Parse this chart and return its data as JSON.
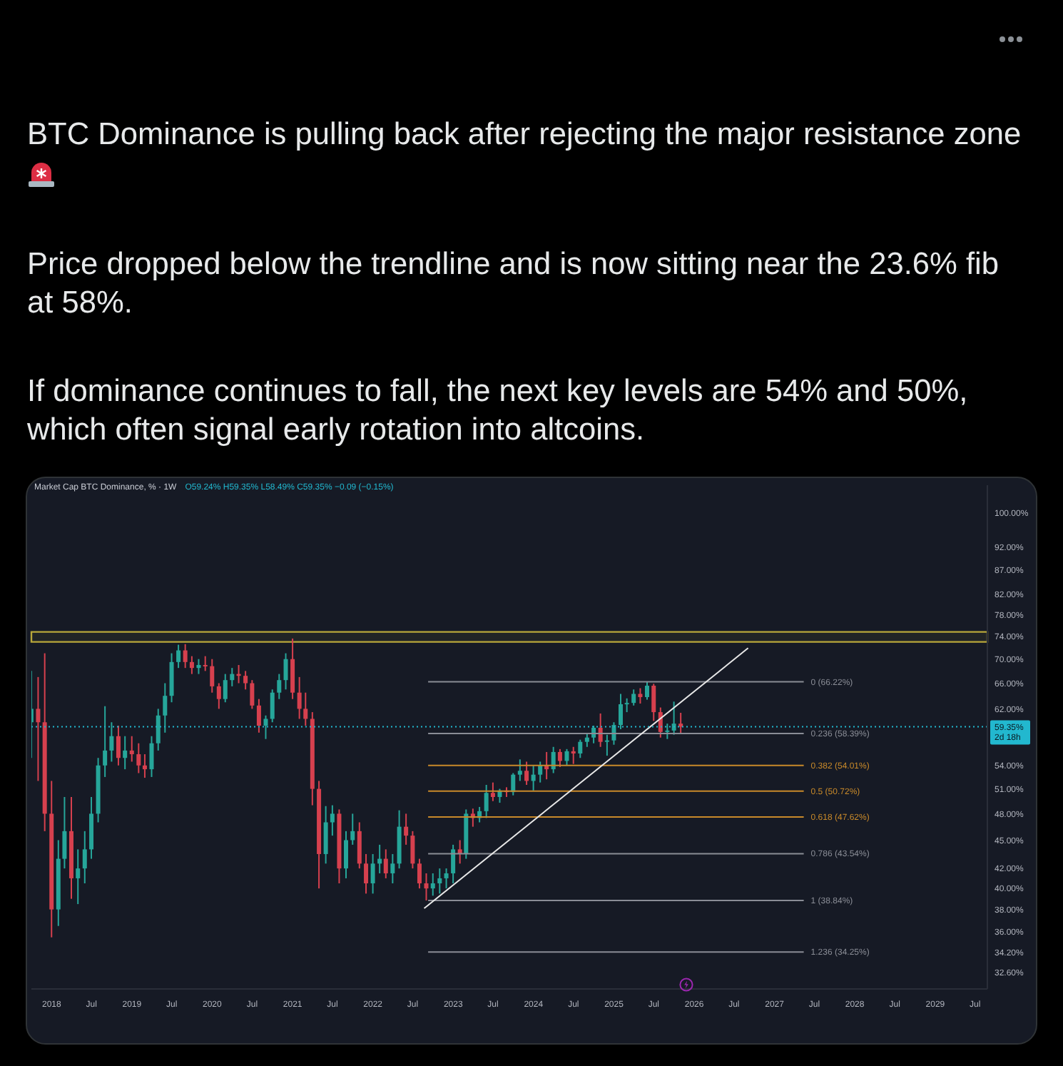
{
  "chart_data": {
    "type": "candlestick",
    "title": "Market Cap BTC Dominance, % · 1W",
    "subtitle": "O59.24% H59.35% L58.49% C59.35% −0.09 (−0.15%)",
    "annotations": [
      "BTC Dominance is pulling back after rejecting the major resistance zone",
      "Price dropped below the trendline and is now sitting near the 23.6% fib at 58%.",
      "If dominance continues to fall, the next key levels are 54% and 50%,\nwhich often signal early rotation into altcoins."
    ],
    "x": [
      "2017-10",
      "2017-11",
      "2017-12",
      "2018-01",
      "2018-02",
      "2018-03",
      "2018-04",
      "2018-05",
      "2018-06",
      "2018-07",
      "2018-08",
      "2018-09",
      "2018-10",
      "2018-11",
      "2018-12",
      "2019-01",
      "2019-02",
      "2019-03",
      "2019-04",
      "2019-05",
      "2019-06",
      "2019-07",
      "2019-08",
      "2019-09",
      "2019-10",
      "2019-11",
      "2019-12",
      "2020-01",
      "2020-02",
      "2020-03",
      "2020-04",
      "2020-05",
      "2020-06",
      "2020-07",
      "2020-08",
      "2020-09",
      "2020-10",
      "2020-11",
      "2020-12",
      "2021-01",
      "2021-02",
      "2021-03",
      "2021-04",
      "2021-05",
      "2021-06",
      "2021-07",
      "2021-08",
      "2021-09",
      "2021-10",
      "2021-11",
      "2021-12",
      "2022-01",
      "2022-02",
      "2022-03",
      "2022-04",
      "2022-05",
      "2022-06",
      "2022-07",
      "2022-08",
      "2022-09",
      "2022-10",
      "2022-11",
      "2022-12",
      "2023-01",
      "2023-02",
      "2023-03",
      "2023-04",
      "2023-05",
      "2023-06",
      "2023-07",
      "2023-08",
      "2023-09",
      "2023-10",
      "2023-11",
      "2023-12",
      "2024-01",
      "2024-02",
      "2024-03",
      "2024-04",
      "2024-05",
      "2024-06",
      "2024-07",
      "2024-08",
      "2024-09",
      "2024-10",
      "2024-11",
      "2024-12",
      "2025-01",
      "2025-02",
      "2025-03",
      "2025-04",
      "2025-05",
      "2025-06",
      "2025-07",
      "2025-08",
      "2025-09",
      "2025-10",
      "2025-11"
    ],
    "ohlc": [
      [
        60,
        68,
        55,
        62
      ],
      [
        62,
        67,
        52,
        60
      ],
      [
        60,
        71,
        46,
        48
      ],
      [
        48,
        52,
        35.5,
        38
      ],
      [
        38,
        45,
        36.5,
        43
      ],
      [
        43,
        50,
        42,
        46
      ],
      [
        46,
        50,
        39,
        41
      ],
      [
        41,
        44,
        38.5,
        42
      ],
      [
        42,
        46,
        40.5,
        44
      ],
      [
        44,
        50,
        43,
        48
      ],
      [
        48,
        55,
        47,
        54
      ],
      [
        54,
        62.4,
        52.5,
        56
      ],
      [
        56,
        60,
        54.5,
        58
      ],
      [
        58,
        59.5,
        54,
        55
      ],
      [
        55,
        58,
        53.5,
        56
      ],
      [
        56,
        58,
        54.5,
        55.5
      ],
      [
        55.5,
        57,
        53,
        54
      ],
      [
        54,
        55.5,
        52.4,
        53.5
      ],
      [
        53.5,
        58,
        52.5,
        57
      ],
      [
        57,
        62,
        56,
        61
      ],
      [
        61,
        66,
        58.5,
        64
      ],
      [
        64,
        71,
        63,
        69.5
      ],
      [
        69.5,
        72.5,
        68.5,
        71.5
      ],
      [
        71.5,
        72.6,
        68.5,
        69.5
      ],
      [
        69.5,
        70.5,
        67.5,
        68.5
      ],
      [
        68.5,
        70,
        67.5,
        69
      ],
      [
        69,
        70.5,
        68,
        68.8
      ],
      [
        68.8,
        70,
        64.5,
        65.5
      ],
      [
        65.5,
        66,
        62,
        63.5
      ],
      [
        63.5,
        67.5,
        63,
        66.5
      ],
      [
        66.5,
        68.5,
        65.5,
        67.5
      ],
      [
        67.5,
        69,
        66,
        67.2
      ],
      [
        67.2,
        68,
        65,
        66
      ],
      [
        66,
        66.5,
        62,
        62.5
      ],
      [
        62.5,
        63.5,
        58.5,
        59.5
      ],
      [
        59.5,
        61,
        57.6,
        60.5
      ],
      [
        60.5,
        65,
        60,
        64.5
      ],
      [
        64.5,
        67.5,
        63.5,
        66.5
      ],
      [
        66.5,
        71,
        65,
        70
      ],
      [
        70,
        73.6,
        63.5,
        64.5
      ],
      [
        64.5,
        67,
        60.5,
        62
      ],
      [
        62,
        64.5,
        59.5,
        60.5
      ],
      [
        60.5,
        61.5,
        49,
        51
      ],
      [
        51,
        52,
        40,
        43.5
      ],
      [
        43.5,
        48.9,
        42.5,
        47
      ],
      [
        47,
        49,
        45.5,
        48
      ],
      [
        48,
        48.5,
        40.5,
        42
      ],
      [
        42,
        46,
        41,
        45
      ],
      [
        45,
        48,
        44.5,
        46
      ],
      [
        46,
        47,
        42,
        42.5
      ],
      [
        42.5,
        43.5,
        39.5,
        40.5
      ],
      [
        40.5,
        43.5,
        39.5,
        42.5
      ],
      [
        42.5,
        44.5,
        41.5,
        43
      ],
      [
        43,
        44,
        41,
        41.5
      ],
      [
        41.5,
        43.5,
        40.5,
        42.5
      ],
      [
        42.5,
        48.4,
        42,
        46.5
      ],
      [
        46.5,
        48,
        44.5,
        45.5
      ],
      [
        45.5,
        46,
        42,
        42.5
      ],
      [
        42.5,
        43,
        40,
        40.5
      ],
      [
        40.5,
        41.5,
        38.84,
        40
      ],
      [
        40,
        41.5,
        39.3,
        40.5
      ],
      [
        40.5,
        42,
        39.5,
        41
      ],
      [
        41,
        42,
        40,
        41.5
      ],
      [
        41.5,
        44.5,
        40.5,
        44
      ],
      [
        44,
        45,
        42.5,
        43.5
      ],
      [
        43.5,
        48.5,
        43,
        48
      ],
      [
        48,
        48.6,
        46.5,
        47.5
      ],
      [
        47.5,
        48.8,
        47,
        48.3
      ],
      [
        48.3,
        51.5,
        47.5,
        50.5
      ],
      [
        50.5,
        51.8,
        49.5,
        50
      ],
      [
        50,
        51,
        49.3,
        50.8
      ],
      [
        50.8,
        51.2,
        50,
        50.6
      ],
      [
        50.6,
        53,
        50.2,
        52.8
      ],
      [
        52.8,
        54.8,
        52,
        53.3
      ],
      [
        53.3,
        54.5,
        51.5,
        52
      ],
      [
        52,
        54,
        50.8,
        52.8
      ],
      [
        52.8,
        54.5,
        51.8,
        54
      ],
      [
        54,
        55.8,
        52.2,
        53.5
      ],
      [
        53.5,
        56.5,
        53,
        55.8
      ],
      [
        55.8,
        56.2,
        53.8,
        54.6
      ],
      [
        54.6,
        56.2,
        54,
        55.9
      ],
      [
        55.9,
        56.5,
        54.2,
        55.6
      ],
      [
        55.6,
        57.5,
        55,
        57.2
      ],
      [
        57.2,
        58.4,
        56.5,
        57.8
      ],
      [
        57.8,
        59.5,
        57,
        59.2
      ],
      [
        59.2,
        61.3,
        56.5,
        57.2
      ],
      [
        57.2,
        58.2,
        55.3,
        57.4
      ],
      [
        57.4,
        60,
        56.8,
        59.6
      ],
      [
        59.6,
        64.3,
        59,
        62.7
      ],
      [
        62.7,
        63.6,
        61.5,
        62.9
      ],
      [
        62.9,
        65,
        62.5,
        64.3
      ],
      [
        64.3,
        65.2,
        62.8,
        63.8
      ],
      [
        63.8,
        66.22,
        63.4,
        65.6
      ],
      [
        65.6,
        65.9,
        60.2,
        61.5
      ],
      [
        61.5,
        62.2,
        57.8,
        58.6
      ],
      [
        58.6,
        59.8,
        57.6,
        58.8
      ],
      [
        58.8,
        63.1,
        58.2,
        59.8
      ],
      [
        59.8,
        61.4,
        58.3,
        59.35
      ]
    ],
    "colors": [
      "#26a69a",
      "#d6404e",
      "#d6404e",
      "#d6404e",
      "#26a69a",
      "#26a69a",
      "#d6404e",
      "#26a69a",
      "#26a69a",
      "#26a69a",
      "#26a69a",
      "#26a69a",
      "#26a69a",
      "#d6404e",
      "#26a69a",
      "#d6404e",
      "#d6404e",
      "#d6404e",
      "#26a69a",
      "#26a69a",
      "#26a69a",
      "#26a69a",
      "#26a69a",
      "#d6404e",
      "#d6404e",
      "#26a69a",
      "#d6404e",
      "#d6404e",
      "#d6404e",
      "#26a69a",
      "#26a69a",
      "#d6404e",
      "#d6404e",
      "#d6404e",
      "#d6404e",
      "#26a69a",
      "#26a69a",
      "#26a69a",
      "#26a69a",
      "#d6404e",
      "#d6404e",
      "#d6404e",
      "#d6404e",
      "#d6404e",
      "#26a69a",
      "#26a69a",
      "#d6404e",
      "#26a69a",
      "#26a69a",
      "#d6404e",
      "#d6404e",
      "#26a69a",
      "#26a69a",
      "#d6404e",
      "#26a69a",
      "#26a69a",
      "#d6404e",
      "#d6404e",
      "#d6404e",
      "#d6404e",
      "#26a69a",
      "#26a69a",
      "#26a69a",
      "#26a69a",
      "#d6404e",
      "#26a69a",
      "#d6404e",
      "#26a69a",
      "#26a69a",
      "#d6404e",
      "#26a69a",
      "#d6404e",
      "#26a69a",
      "#26a69a",
      "#d6404e",
      "#26a69a",
      "#26a69a",
      "#d6404e",
      "#26a69a",
      "#d6404e",
      "#26a69a",
      "#d6404e",
      "#26a69a",
      "#26a69a",
      "#26a69a",
      "#d6404e",
      "#26a69a",
      "#26a69a",
      "#26a69a",
      "#26a69a",
      "#26a69a",
      "#d6404e",
      "#26a69a",
      "#d6404e",
      "#d6404e",
      "#26a69a",
      "#26a69a",
      "#d6404e"
    ],
    "series": [
      {
        "type": "line",
        "name": "0 (66.22%)",
        "color": "#8a8d96",
        "x": [
          "2022-09-09",
          "2027-05-14"
        ],
        "values": [
          66.22,
          66.22
        ]
      },
      {
        "type": "line",
        "name": "0.236 (58.39%)",
        "color": "#8a8d96",
        "x": [
          "2022-09-09",
          "2027-05-14"
        ],
        "values": [
          58.39,
          58.39
        ]
      },
      {
        "type": "line",
        "name": "0.382 (54.01%)",
        "color": "#c98a2a",
        "x": [
          "2022-09-09",
          "2027-05-14"
        ],
        "values": [
          54.01,
          54.01
        ]
      },
      {
        "type": "line",
        "name": "0.5 (50.72%)",
        "color": "#c98a2a",
        "x": [
          "2022-09-09",
          "2027-05-14"
        ],
        "values": [
          50.72,
          50.72
        ]
      },
      {
        "type": "line",
        "name": "0.618 (47.62%)",
        "color": "#c98a2a",
        "x": [
          "2022-09-09",
          "2027-05-14"
        ],
        "values": [
          47.62,
          47.62
        ]
      },
      {
        "type": "line",
        "name": "0.786 (43.54%)",
        "color": "#8a8d96",
        "x": [
          "2022-09-09",
          "2027-05-14"
        ],
        "values": [
          43.54,
          43.54
        ]
      },
      {
        "type": "line",
        "name": "1 (38.84%)",
        "color": "#8a8d96",
        "x": [
          "2022-09-09",
          "2027-05-14"
        ],
        "values": [
          38.84,
          38.84
        ]
      },
      {
        "type": "line",
        "name": "1.236 (34.25%)",
        "color": "#8a8d96",
        "x": [
          "2022-09-09",
          "2027-05-14"
        ],
        "values": [
          34.25,
          34.25
        ]
      },
      {
        "type": "line",
        "color": "#e8e8e8",
        "x": [
          "2022-08-22",
          "2026-09-03"
        ],
        "values": [
          38.1,
          71.9
        ]
      }
    ],
    "xlim": [
      "2017-10-01",
      "2029-08-26"
    ],
    "xticks": [
      {
        "value": "2018-01",
        "label": "2018"
      },
      {
        "value": "2018-07",
        "label": "Jul"
      },
      {
        "value": "2019-01",
        "label": "2019"
      },
      {
        "value": "2019-07",
        "label": "Jul"
      },
      {
        "value": "2020-01",
        "label": "2020"
      },
      {
        "value": "2020-07",
        "label": "Jul"
      },
      {
        "value": "2021-01",
        "label": "2021"
      },
      {
        "value": "2021-07",
        "label": "Jul"
      },
      {
        "value": "2022-01",
        "label": "2022"
      },
      {
        "value": "2022-07",
        "label": "Jul"
      },
      {
        "value": "2023-01",
        "label": "2023"
      },
      {
        "value": "2023-07",
        "label": "Jul"
      },
      {
        "value": "2024-01",
        "label": "2024"
      },
      {
        "value": "2024-07",
        "label": "Jul"
      },
      {
        "value": "2025-01",
        "label": "2025"
      },
      {
        "value": "2025-07",
        "label": "Jul"
      },
      {
        "value": "2026-01",
        "label": "2026"
      },
      {
        "value": "2026-07",
        "label": "Jul"
      },
      {
        "value": "2027-01",
        "label": "2027"
      },
      {
        "value": "2027-07",
        "label": "Jul"
      },
      {
        "value": "2028-01",
        "label": "2028"
      },
      {
        "value": "2028-07",
        "label": "Jul"
      },
      {
        "value": "2029-01",
        "label": "2029"
      },
      {
        "value": "2029-07",
        "label": "Jul"
      }
    ],
    "ylim": [
      31.3,
      107
    ],
    "log": true,
    "yticks": [
      {
        "value": 32.6,
        "label": "32.60%"
      },
      {
        "value": 34.2,
        "label": "34.20%"
      },
      {
        "value": 36,
        "label": "36.00%"
      },
      {
        "value": 38,
        "label": "38.00%"
      },
      {
        "value": 40,
        "label": "40.00%"
      },
      {
        "value": 42,
        "label": "42.00%"
      },
      {
        "value": 45,
        "label": "45.00%"
      },
      {
        "value": 48,
        "label": "48.00%"
      },
      {
        "value": 51,
        "label": "51.00%"
      },
      {
        "value": 54,
        "label": "54.00%"
      },
      {
        "value": 62,
        "label": "62.00%"
      },
      {
        "value": 66,
        "label": "66.00%"
      },
      {
        "value": 70,
        "label": "70.00%"
      },
      {
        "value": 74,
        "label": "74.00%"
      },
      {
        "value": 78,
        "label": "78.00%"
      },
      {
        "value": 82,
        "label": "82.00%"
      },
      {
        "value": 87,
        "label": "87.00%"
      },
      {
        "value": 92,
        "label": "92.00%"
      },
      {
        "value": 100,
        "label": "100.00%"
      }
    ],
    "ref_lines": [
      {
        "axis": "y",
        "value": 59.35,
        "label": "59.35%\n2d 18h",
        "color": "#22b8cf",
        "line_style": "dotted"
      }
    ],
    "bands": [
      {
        "axis": "y",
        "from": 73.0,
        "to": 74.8,
        "color": "#b8a73a"
      }
    ]
  }
}
